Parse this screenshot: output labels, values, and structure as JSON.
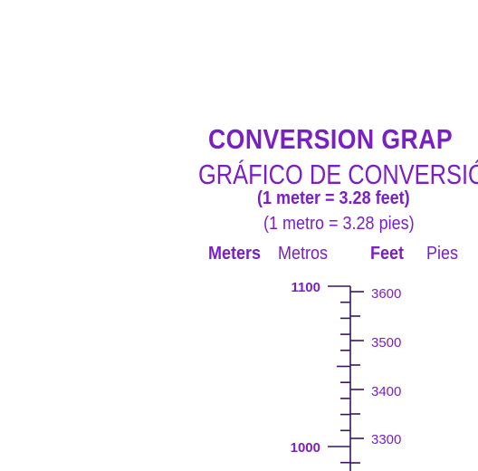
{
  "title": "CONVERSION GRAP",
  "subtitle": "GRÁFICO DE CONVERSIÓ",
  "equation_en": "(1 meter = 3.28 feet)",
  "equation_es": "(1 metro = 3.28 pies)",
  "headers": {
    "meters": "Meters",
    "metros": "Metros",
    "feet": "Feet",
    "pies": "Pies"
  },
  "colors": {
    "ink": "#7a1fc4"
  },
  "scale": {
    "meters_labels": [
      "1100",
      "1000"
    ],
    "feet_labels": [
      "3600",
      "3500",
      "3400",
      "3300"
    ]
  }
}
